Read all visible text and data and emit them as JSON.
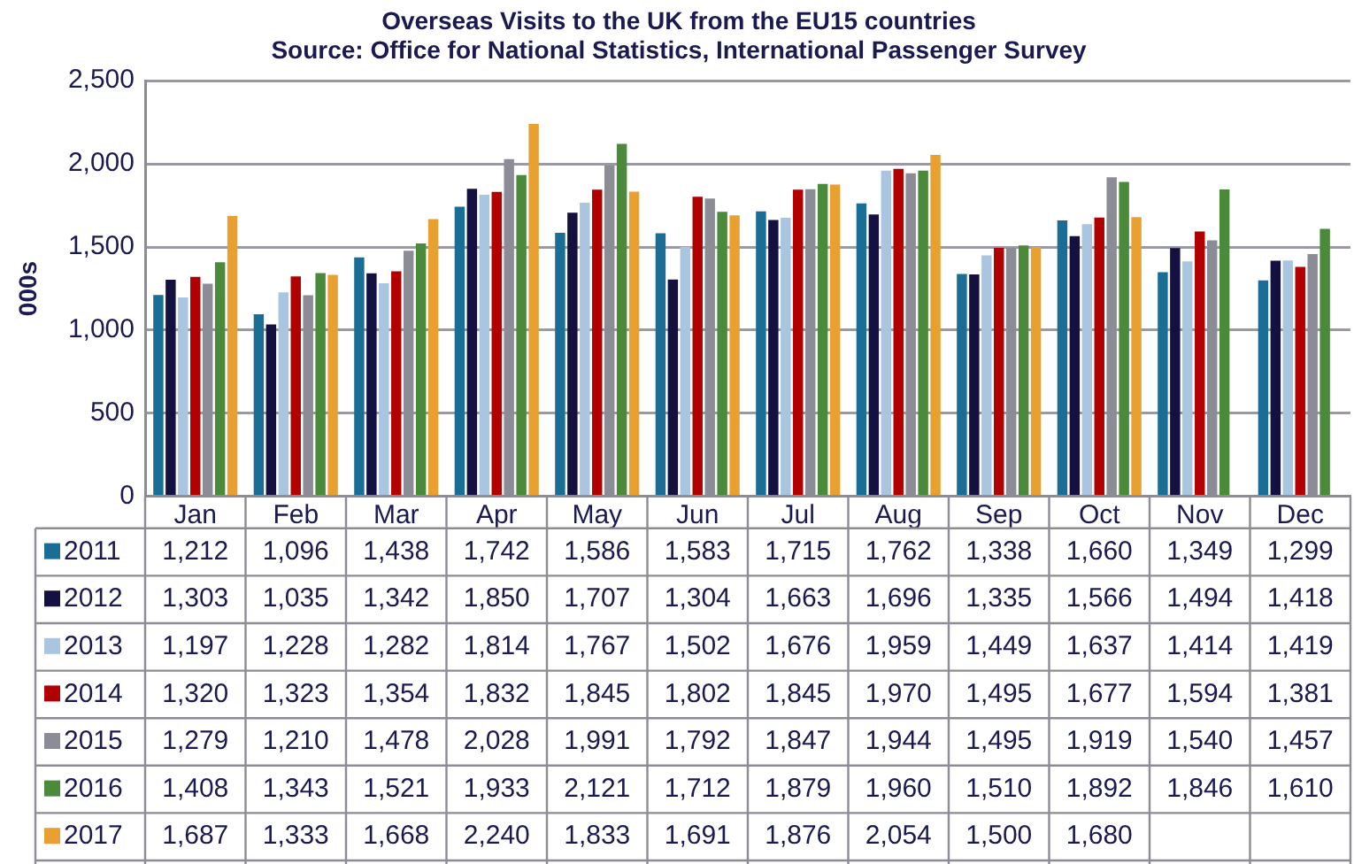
{
  "chart_data": {
    "type": "bar",
    "title": "Overseas Visits to the UK from the EU15 countries",
    "annotations": [
      "Source: Office for National Statistics, International Passenger Survey"
    ],
    "ylabel": "000s",
    "categories": [
      "Jan",
      "Feb",
      "Mar",
      "Apr",
      "May",
      "Jun",
      "Jul",
      "Aug",
      "Sep",
      "Oct",
      "Nov",
      "Dec"
    ],
    "ylim": [
      0,
      2500
    ],
    "yticks": [
      0,
      500,
      {
        "value": 1000,
        "label": "1,000"
      },
      {
        "value": 1500,
        "label": "1,500"
      },
      {
        "value": 2000,
        "label": "2,000"
      },
      {
        "value": 2500,
        "label": "2,500"
      }
    ],
    "grid": "y",
    "legend": "bottom",
    "series": [
      {
        "name": "2011",
        "color": "#1a6e96",
        "values": [
          1212,
          1096,
          1438,
          1742,
          1586,
          1583,
          1715,
          1762,
          1338,
          1660,
          1349,
          1299
        ],
        "value_labels": [
          "1,212",
          "1,096",
          "1,438",
          "1,742",
          "1,586",
          "1,583",
          "1,715",
          "1,762",
          "1,338",
          "1,660",
          "1,349",
          "1,299"
        ]
      },
      {
        "name": "2012",
        "color": "#14103f",
        "values": [
          1303,
          1035,
          1342,
          1850,
          1707,
          1304,
          1663,
          1696,
          1335,
          1566,
          1494,
          1418
        ],
        "value_labels": [
          "1,303",
          "1,035",
          "1,342",
          "1,850",
          "1,707",
          "1,304",
          "1,663",
          "1,696",
          "1,335",
          "1,566",
          "1,494",
          "1,418"
        ]
      },
      {
        "name": "2013",
        "color": "#a9c5e0",
        "values": [
          1197,
          1228,
          1282,
          1814,
          1767,
          1502,
          1676,
          1959,
          1449,
          1637,
          1414,
          1419
        ],
        "value_labels": [
          "1,197",
          "1,228",
          "1,282",
          "1,814",
          "1,767",
          "1,502",
          "1,676",
          "1,959",
          "1,449",
          "1,637",
          "1,414",
          "1,419"
        ]
      },
      {
        "name": "2014",
        "color": "#b00000",
        "values": [
          1320,
          1323,
          1354,
          1832,
          1845,
          1802,
          1845,
          1970,
          1495,
          1677,
          1594,
          1381
        ],
        "value_labels": [
          "1,320",
          "1,323",
          "1,354",
          "1,832",
          "1,845",
          "1,802",
          "1,845",
          "1,970",
          "1,495",
          "1,677",
          "1,594",
          "1,381"
        ]
      },
      {
        "name": "2015",
        "color": "#8c8c96",
        "values": [
          1279,
          1210,
          1478,
          2028,
          1991,
          1792,
          1847,
          1944,
          1495,
          1919,
          1540,
          1457
        ],
        "value_labels": [
          "1,279",
          "1,210",
          "1,478",
          "2,028",
          "1,991",
          "1,792",
          "1,847",
          "1,944",
          "1,495",
          "1,919",
          "1,540",
          "1,457"
        ]
      },
      {
        "name": "2016",
        "color": "#4a8a3a",
        "values": [
          1408,
          1343,
          1521,
          1933,
          2121,
          1712,
          1879,
          1960,
          1510,
          1892,
          1846,
          1610
        ],
        "value_labels": [
          "1,408",
          "1,343",
          "1,521",
          "1,933",
          "2,121",
          "1,712",
          "1,879",
          "1,960",
          "1,510",
          "1,892",
          "1,846",
          "1,610"
        ]
      },
      {
        "name": "2017",
        "color": "#e8a030",
        "values": [
          1687,
          1333,
          1668,
          2240,
          1833,
          1691,
          1876,
          2054,
          1500,
          1680,
          null,
          null
        ],
        "value_labels": [
          "1,687",
          "1,333",
          "1,668",
          "2,240",
          "1,833",
          "1,691",
          "1,876",
          "2,054",
          "1,500",
          "1,680",
          null,
          null
        ]
      }
    ]
  }
}
